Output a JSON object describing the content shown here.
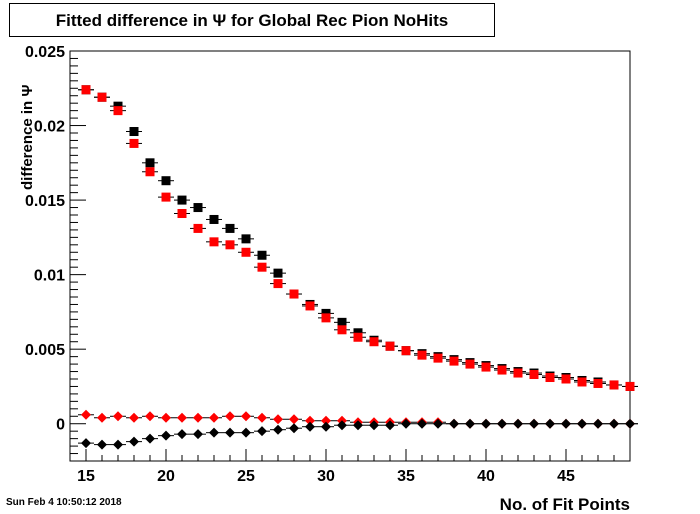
{
  "title": "Fitted difference in  Ψ  for Global Rec Pion NoHits",
  "timestamp": "Sun Feb  4 10:50:12 2018",
  "chart_data": {
    "type": "scatter",
    "title": "Fitted difference in  Ψ  for Global Rec Pion NoHits",
    "xlabel": "No. of Fit Points",
    "ylabel": "difference in  Ψ",
    "xlim": [
      14,
      49
    ],
    "ylim": [
      -0.0025,
      0.025
    ],
    "x_ticks": [
      15,
      20,
      25,
      30,
      35,
      40,
      45
    ],
    "y_ticks": [
      0,
      0.005,
      0.01,
      0.015,
      0.02,
      0.025
    ],
    "y_tick_labels": [
      "0",
      "0.005",
      "0.01",
      "0.015",
      "0.02",
      "0.025"
    ],
    "grid": false,
    "x": [
      15,
      16,
      17,
      18,
      19,
      20,
      21,
      22,
      23,
      24,
      25,
      26,
      27,
      28,
      29,
      30,
      31,
      32,
      33,
      34,
      35,
      36,
      37,
      38,
      39,
      40,
      41,
      42,
      43,
      44,
      45,
      46,
      47,
      48,
      49
    ],
    "series": [
      {
        "marker": "square",
        "color": "#000000",
        "values": [
          0.0224,
          0.0219,
          0.0213,
          0.0196,
          0.0175,
          0.0163,
          0.015,
          0.0145,
          0.0137,
          0.0131,
          0.0124,
          0.0113,
          0.0101,
          0.0087,
          0.008,
          0.0074,
          0.0068,
          0.0061,
          0.0056,
          0.0052,
          0.0049,
          0.0047,
          0.0045,
          0.0043,
          0.0041,
          0.0039,
          0.0037,
          0.0035,
          0.0034,
          0.0032,
          0.0031,
          0.0029,
          0.0028,
          0.0026,
          0.0025
        ]
      },
      {
        "marker": "square",
        "color": "#ff0000",
        "values": [
          0.0224,
          0.0219,
          0.021,
          0.0188,
          0.0169,
          0.0152,
          0.0141,
          0.0131,
          0.0122,
          0.012,
          0.0115,
          0.0105,
          0.0094,
          0.0087,
          0.0079,
          0.0071,
          0.0063,
          0.0058,
          0.0055,
          0.0052,
          0.0049,
          0.0046,
          0.0044,
          0.0042,
          0.004,
          0.0038,
          0.0036,
          0.0034,
          0.0033,
          0.0031,
          0.003,
          0.0028,
          0.0027,
          0.0026,
          0.0025
        ]
      },
      {
        "marker": "diamond",
        "color": "#ff0000",
        "values": [
          0.0006,
          0.0004,
          0.0005,
          0.0004,
          0.0005,
          0.0004,
          0.0004,
          0.0004,
          0.0004,
          0.0005,
          0.0005,
          0.0004,
          0.0003,
          0.0003,
          0.0002,
          0.0002,
          0.0002,
          0.0001,
          0.0001,
          0.0001,
          0.0001,
          0.0001,
          0.0001,
          0.0,
          0.0,
          0.0,
          0.0,
          0.0,
          0.0,
          0.0,
          0.0,
          0.0,
          0.0,
          0.0,
          0.0
        ]
      },
      {
        "marker": "diamond",
        "color": "#000000",
        "values": [
          -0.0013,
          -0.0014,
          -0.0014,
          -0.0012,
          -0.001,
          -0.0008,
          -0.0007,
          -0.0007,
          -0.0006,
          -0.0006,
          -0.0006,
          -0.0005,
          -0.0004,
          -0.0003,
          -0.0002,
          -0.0002,
          -0.0001,
          -0.0001,
          -0.0001,
          -0.0001,
          0.0,
          0.0,
          0.0,
          0.0,
          0.0,
          0.0,
          0.0,
          0.0,
          0.0,
          0.0,
          0.0,
          0.0,
          0.0,
          0.0,
          0.0
        ]
      }
    ]
  }
}
